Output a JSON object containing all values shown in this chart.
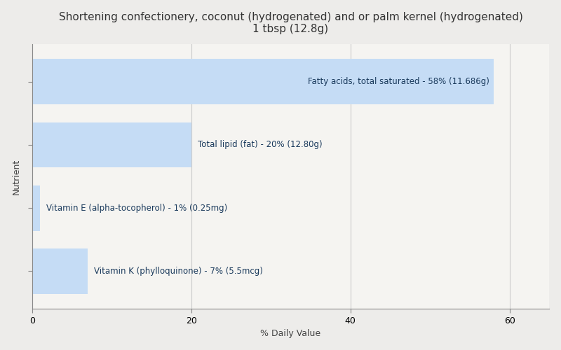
{
  "title_line1": "Shortening confectionery, coconut (hydrogenated) and or palm kernel (hydrogenated)",
  "title_line2": "1 tbsp (12.8g)",
  "xlabel": "% Daily Value",
  "ylabel": "Nutrient",
  "background_color": "#edecea",
  "plot_bg_color": "#f5f4f1",
  "bar_color": "#c5dcf5",
  "nutrients": [
    "Fatty acids, total saturated",
    "Total lipid (fat)",
    "Vitamin E (alpha-tocopherol)",
    "Vitamin K (phylloquinone)"
  ],
  "values": [
    58,
    20,
    1,
    7
  ],
  "labels": [
    "Fatty acids, total saturated - 58% (11.686g)",
    "Total lipid (fat) - 20% (12.80g)",
    "Vitamin E (alpha-tocopherol) - 1% (0.25mg)",
    "Vitamin K (phylloquinone) - 7% (5.5mcg)"
  ],
  "label_inside": [
    true,
    false,
    false,
    false
  ],
  "xlim": [
    0,
    65
  ],
  "xticks": [
    0,
    20,
    40,
    60
  ],
  "title_fontsize": 11,
  "label_fontsize": 8.5,
  "axis_fontsize": 9,
  "grid_color": "#cccccc",
  "text_color": "#1a3a5c",
  "bar_height": 0.72
}
